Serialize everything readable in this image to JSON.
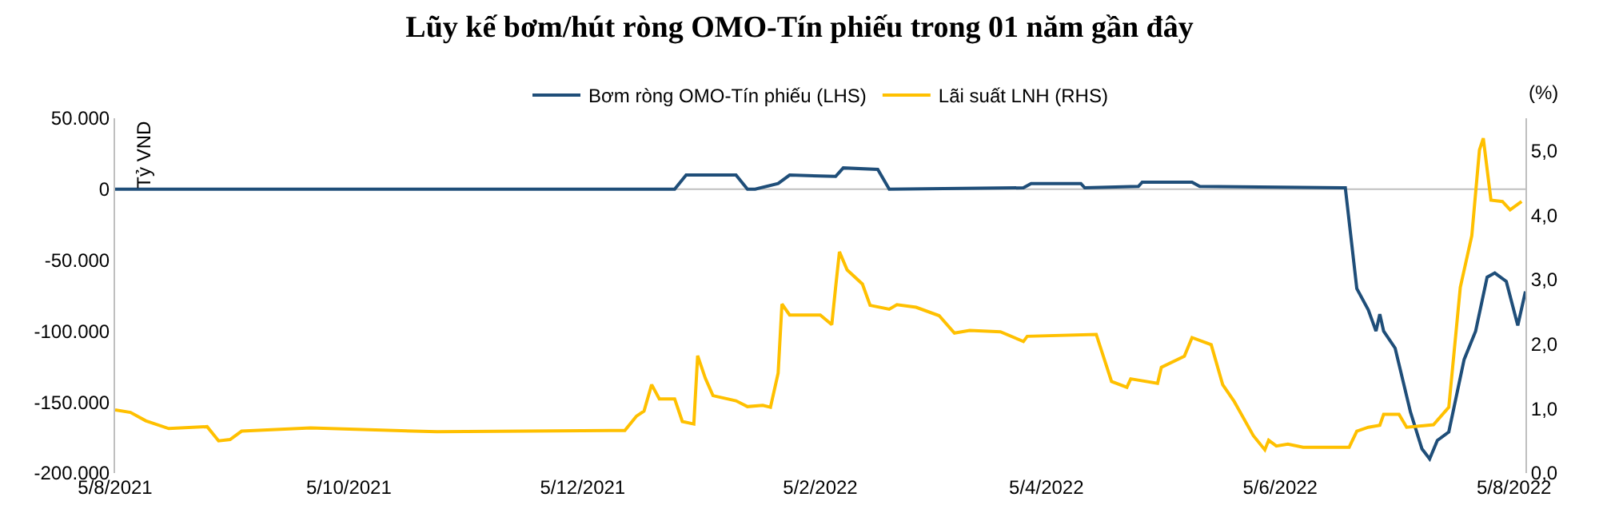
{
  "chart_data": {
    "type": "line",
    "title": "Lũy kế bơm/hút ròng OMO-Tín phiếu trong 01 năm gần đây",
    "ylabel": "Tỷ VND",
    "y2label": "(%)",
    "xlim": [
      "2021-08-05",
      "2022-08-08"
    ],
    "xticks": [
      {
        "value": "2021-08-05",
        "label": "5/8/2021"
      },
      {
        "value": "2021-10-05",
        "label": "5/10/2021"
      },
      {
        "value": "2021-12-05",
        "label": "5/12/2021"
      },
      {
        "value": "2022-02-05",
        "label": "5/2/2022"
      },
      {
        "value": "2022-04-05",
        "label": "5/4/2022"
      },
      {
        "value": "2022-06-05",
        "label": "5/6/2022"
      },
      {
        "value": "2022-08-05",
        "label": "5/8/2022"
      }
    ],
    "ylim": [
      -200000,
      50000
    ],
    "yticks": [
      {
        "value": -200000,
        "label": "-200.000"
      },
      {
        "value": -150000,
        "label": "-150.000"
      },
      {
        "value": -100000,
        "label": "-100.000"
      },
      {
        "value": -50000,
        "label": "-50.000"
      },
      0,
      {
        "value": 50000,
        "label": "50.000"
      }
    ],
    "y2lim": [
      0,
      5.5
    ],
    "y2ticks": [
      {
        "value": 0,
        "label": "0,0"
      },
      {
        "value": 1,
        "label": "1,0"
      },
      {
        "value": 2,
        "label": "2,0"
      },
      {
        "value": 3,
        "label": "3,0"
      },
      {
        "value": 4,
        "label": "4,0"
      },
      {
        "value": 5,
        "label": "5,0"
      }
    ],
    "ref_lines": [
      {
        "axis": "y",
        "value": 0,
        "color": "#bfbfbf"
      }
    ],
    "grid": false,
    "legend": "top",
    "marker": "none",
    "line_style": "solid",
    "series": [
      {
        "name": "Bơm ròng OMO-Tín phiếu (LHS)",
        "color": "#1f4e79",
        "x": [
          "2021-08-05",
          "2021-12-29",
          "2022-01-01",
          "2022-01-14",
          "2022-01-17",
          "2022-01-19",
          "2022-01-25",
          "2022-01-28",
          "2022-02-09",
          "2022-02-11",
          "2022-02-20",
          "2022-02-23",
          "2022-03-30",
          "2022-04-01",
          "2022-04-14",
          "2022-04-15",
          "2022-04-29",
          "2022-04-30",
          "2022-05-13",
          "2022-05-15",
          "2022-06-21",
          "2022-06-22",
          "2022-06-25",
          "2022-06-28",
          "2022-06-30",
          "2022-07-01",
          "2022-07-02",
          "2022-07-05",
          "2022-07-09",
          "2022-07-12",
          "2022-07-14",
          "2022-07-16",
          "2022-07-19",
          "2022-07-23",
          "2022-07-26",
          "2022-07-29",
          "2022-07-31",
          "2022-08-03",
          "2022-08-06",
          "2022-08-08"
        ],
        "values": [
          0,
          0,
          10000,
          10000,
          0,
          0,
          4000,
          10000,
          9000,
          15000,
          14000,
          0,
          1000,
          4000,
          4000,
          1000,
          2000,
          5000,
          5000,
          2000,
          1000,
          1000,
          -70000,
          -85000,
          -100000,
          -88000,
          -100000,
          -112000,
          -157000,
          -183000,
          -190000,
          -177000,
          -171000,
          -120000,
          -100000,
          -62000,
          -59000,
          -65000,
          -96000,
          -72000
        ]
      },
      {
        "name": "Lãi suất LNH (RHS)",
        "color": "#ffc000",
        "axis": "y2",
        "x": [
          "2021-08-05",
          "2021-08-09",
          "2021-08-13",
          "2021-08-19",
          "2021-08-29",
          "2021-09-01",
          "2021-09-04",
          "2021-09-07",
          "2021-09-25",
          "2021-10-28",
          "2021-12-16",
          "2021-12-19",
          "2021-12-21",
          "2021-12-23",
          "2021-12-25",
          "2021-12-29",
          "2021-12-31",
          "2022-01-03",
          "2022-01-04",
          "2022-01-06",
          "2022-01-08",
          "2022-01-14",
          "2022-01-17",
          "2022-01-21",
          "2022-01-23",
          "2022-01-25",
          "2022-01-26",
          "2022-01-28",
          "2022-02-05",
          "2022-02-08",
          "2022-02-09",
          "2022-02-10",
          "2022-02-12",
          "2022-02-16",
          "2022-02-18",
          "2022-02-23",
          "2022-02-25",
          "2022-03-02",
          "2022-03-08",
          "2022-03-12",
          "2022-03-16",
          "2022-03-24",
          "2022-03-30",
          "2022-03-31",
          "2022-04-18",
          "2022-04-22",
          "2022-04-26",
          "2022-04-27",
          "2022-05-04",
          "2022-05-05",
          "2022-05-11",
          "2022-05-13",
          "2022-05-18",
          "2022-05-21",
          "2022-05-24",
          "2022-05-29",
          "2022-06-01",
          "2022-06-02",
          "2022-06-04",
          "2022-06-07",
          "2022-06-11",
          "2022-06-23",
          "2022-06-25",
          "2022-06-28",
          "2022-07-01",
          "2022-07-02",
          "2022-07-06",
          "2022-07-08",
          "2022-07-15",
          "2022-07-19",
          "2022-07-22",
          "2022-07-25",
          "2022-07-27",
          "2022-07-28",
          "2022-07-30",
          "2022-08-02",
          "2022-08-04",
          "2022-08-07"
        ],
        "values": [
          0.98,
          0.94,
          0.81,
          0.69,
          0.72,
          0.5,
          0.52,
          0.65,
          0.7,
          0.64,
          0.66,
          0.88,
          0.96,
          1.37,
          1.15,
          1.15,
          0.8,
          0.76,
          1.82,
          1.47,
          1.2,
          1.12,
          1.03,
          1.05,
          1.02,
          1.55,
          2.62,
          2.45,
          2.45,
          2.3,
          2.88,
          3.43,
          3.15,
          2.93,
          2.6,
          2.54,
          2.61,
          2.57,
          2.44,
          2.17,
          2.21,
          2.19,
          2.04,
          2.12,
          2.15,
          1.42,
          1.33,
          1.46,
          1.39,
          1.64,
          1.81,
          2.1,
          1.99,
          1.37,
          1.11,
          0.58,
          0.36,
          0.51,
          0.42,
          0.45,
          0.4,
          0.4,
          0.65,
          0.71,
          0.74,
          0.91,
          0.91,
          0.71,
          0.75,
          1.02,
          2.88,
          3.68,
          5.01,
          5.19,
          4.23,
          4.21,
          4.08,
          4.21
        ]
      }
    ]
  }
}
